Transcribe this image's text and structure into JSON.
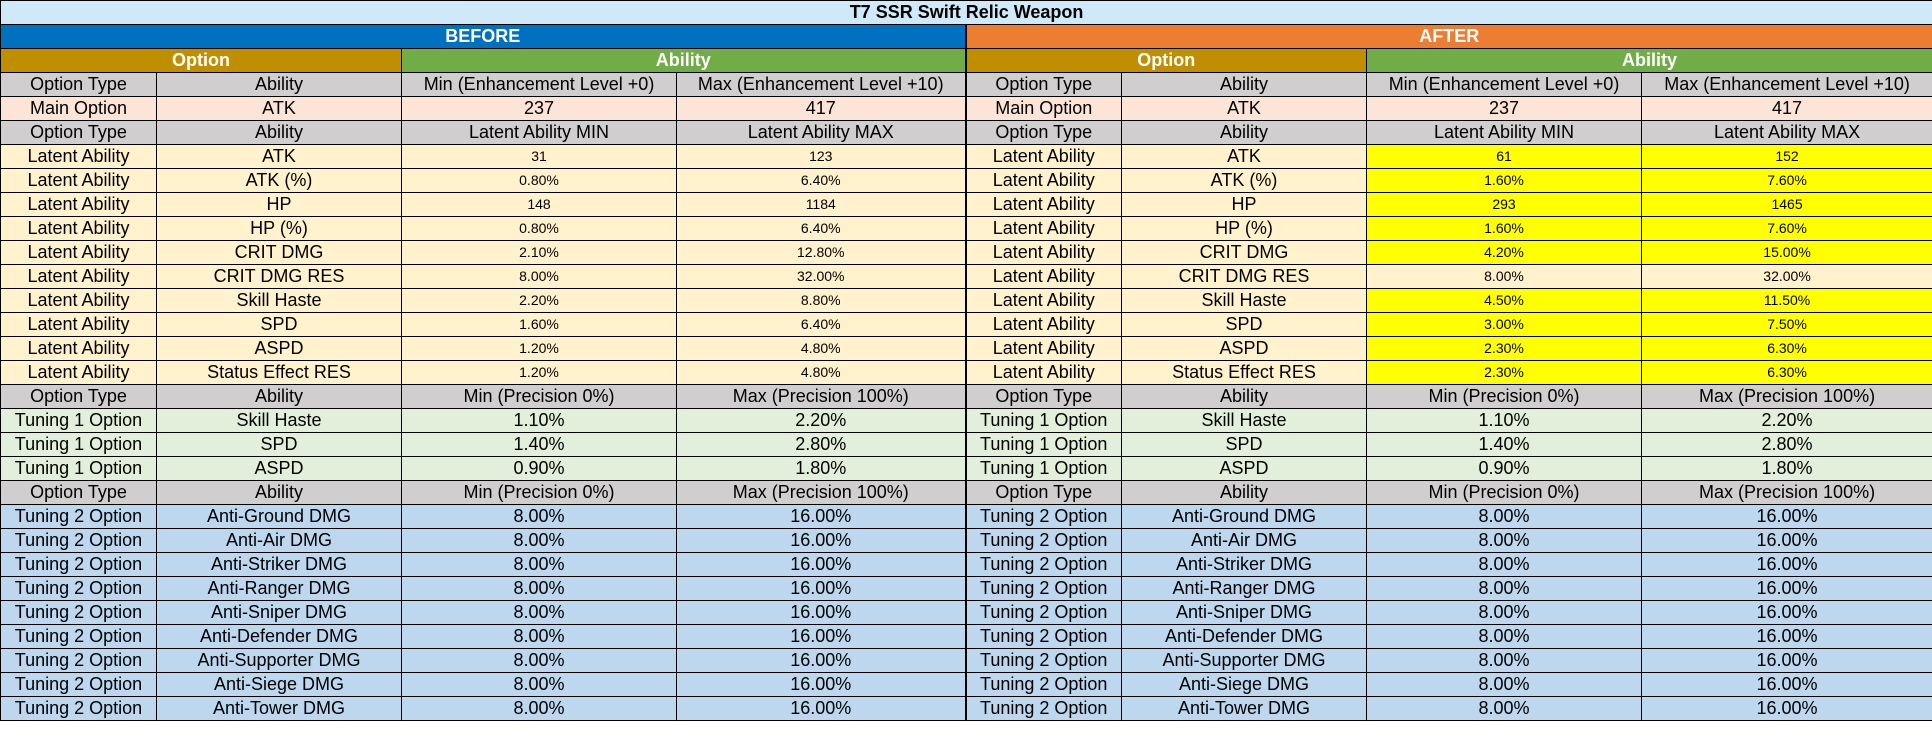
{
  "title": "T7 SSR Swift Relic Weapon",
  "before_label": "BEFORE",
  "after_label": "AFTER",
  "option_label": "Option",
  "ability_label": "Ability",
  "colors": {
    "title_bg": "#cfe9f8",
    "before": "#0070c0",
    "after": "#ed7d31",
    "option_header": "#bf8f00",
    "ability_header": "#70ad47",
    "column_header": "#d0cece",
    "main_option": "#fce4d6",
    "latent": "#fff2cc",
    "changed_highlight": "#ffff00",
    "tuning1": "#e2efda",
    "tuning2": "#bdd7ee"
  },
  "main_header": [
    "Option Type",
    "Ability",
    "Min (Enhancement Level +0)",
    "Max (Enhancement Level +10)"
  ],
  "main_row": {
    "type": "Main Option",
    "ability": "ATK",
    "before": [
      "237",
      "417"
    ],
    "after": [
      "237",
      "417"
    ]
  },
  "latent_header": [
    "Option Type",
    "Ability",
    "Latent Ability MIN",
    "Latent Ability MAX"
  ],
  "latent_rows": [
    {
      "type": "Latent Ability",
      "ability": "ATK",
      "before": [
        "31",
        "123"
      ],
      "after": [
        "61",
        "152"
      ],
      "changed": true
    },
    {
      "type": "Latent Ability",
      "ability": "ATK (%)",
      "before": [
        "0.80%",
        "6.40%"
      ],
      "after": [
        "1.60%",
        "7.60%"
      ],
      "changed": true
    },
    {
      "type": "Latent Ability",
      "ability": "HP",
      "before": [
        "148",
        "1184"
      ],
      "after": [
        "293",
        "1465"
      ],
      "changed": true
    },
    {
      "type": "Latent Ability",
      "ability": "HP (%)",
      "before": [
        "0.80%",
        "6.40%"
      ],
      "after": [
        "1.60%",
        "7.60%"
      ],
      "changed": true
    },
    {
      "type": "Latent Ability",
      "ability": "CRIT DMG",
      "before": [
        "2.10%",
        "12.80%"
      ],
      "after": [
        "4.20%",
        "15.00%"
      ],
      "changed": true
    },
    {
      "type": "Latent Ability",
      "ability": "CRIT DMG RES",
      "before": [
        "8.00%",
        "32.00%"
      ],
      "after": [
        "8.00%",
        "32.00%"
      ],
      "changed": false
    },
    {
      "type": "Latent Ability",
      "ability": "Skill Haste",
      "before": [
        "2.20%",
        "8.80%"
      ],
      "after": [
        "4.50%",
        "11.50%"
      ],
      "changed": true
    },
    {
      "type": "Latent Ability",
      "ability": "SPD",
      "before": [
        "1.60%",
        "6.40%"
      ],
      "after": [
        "3.00%",
        "7.50%"
      ],
      "changed": true
    },
    {
      "type": "Latent Ability",
      "ability": "ASPD",
      "before": [
        "1.20%",
        "4.80%"
      ],
      "after": [
        "2.30%",
        "6.30%"
      ],
      "changed": true
    },
    {
      "type": "Latent Ability",
      "ability": "Status Effect RES",
      "before": [
        "1.20%",
        "4.80%"
      ],
      "after": [
        "2.30%",
        "6.30%"
      ],
      "changed": true
    }
  ],
  "precision_header": [
    "Option Type",
    "Ability",
    "Min (Precision 0%)",
    "Max (Precision 100%)"
  ],
  "tuning1_rows": [
    {
      "type": "Tuning 1 Option",
      "ability": "Skill Haste",
      "before": [
        "1.10%",
        "2.20%"
      ],
      "after": [
        "1.10%",
        "2.20%"
      ]
    },
    {
      "type": "Tuning 1 Option",
      "ability": "SPD",
      "before": [
        "1.40%",
        "2.80%"
      ],
      "after": [
        "1.40%",
        "2.80%"
      ]
    },
    {
      "type": "Tuning 1 Option",
      "ability": "ASPD",
      "before": [
        "0.90%",
        "1.80%"
      ],
      "after": [
        "0.90%",
        "1.80%"
      ]
    }
  ],
  "tuning2_rows": [
    {
      "type": "Tuning 2 Option",
      "ability": "Anti-Ground DMG",
      "before": [
        "8.00%",
        "16.00%"
      ],
      "after": [
        "8.00%",
        "16.00%"
      ]
    },
    {
      "type": "Tuning 2 Option",
      "ability": "Anti-Air DMG",
      "before": [
        "8.00%",
        "16.00%"
      ],
      "after": [
        "8.00%",
        "16.00%"
      ]
    },
    {
      "type": "Tuning 2 Option",
      "ability": "Anti-Striker DMG",
      "before": [
        "8.00%",
        "16.00%"
      ],
      "after": [
        "8.00%",
        "16.00%"
      ]
    },
    {
      "type": "Tuning 2 Option",
      "ability": "Anti-Ranger DMG",
      "before": [
        "8.00%",
        "16.00%"
      ],
      "after": [
        "8.00%",
        "16.00%"
      ]
    },
    {
      "type": "Tuning 2 Option",
      "ability": "Anti-Sniper DMG",
      "before": [
        "8.00%",
        "16.00%"
      ],
      "after": [
        "8.00%",
        "16.00%"
      ]
    },
    {
      "type": "Tuning 2 Option",
      "ability": "Anti-Defender DMG",
      "before": [
        "8.00%",
        "16.00%"
      ],
      "after": [
        "8.00%",
        "16.00%"
      ]
    },
    {
      "type": "Tuning 2 Option",
      "ability": "Anti-Supporter DMG",
      "before": [
        "8.00%",
        "16.00%"
      ],
      "after": [
        "8.00%",
        "16.00%"
      ]
    },
    {
      "type": "Tuning 2 Option",
      "ability": "Anti-Siege DMG",
      "before": [
        "8.00%",
        "16.00%"
      ],
      "after": [
        "8.00%",
        "16.00%"
      ]
    },
    {
      "type": "Tuning 2 Option",
      "ability": "Anti-Tower DMG",
      "before": [
        "8.00%",
        "16.00%"
      ],
      "after": [
        "8.00%",
        "16.00%"
      ]
    }
  ]
}
